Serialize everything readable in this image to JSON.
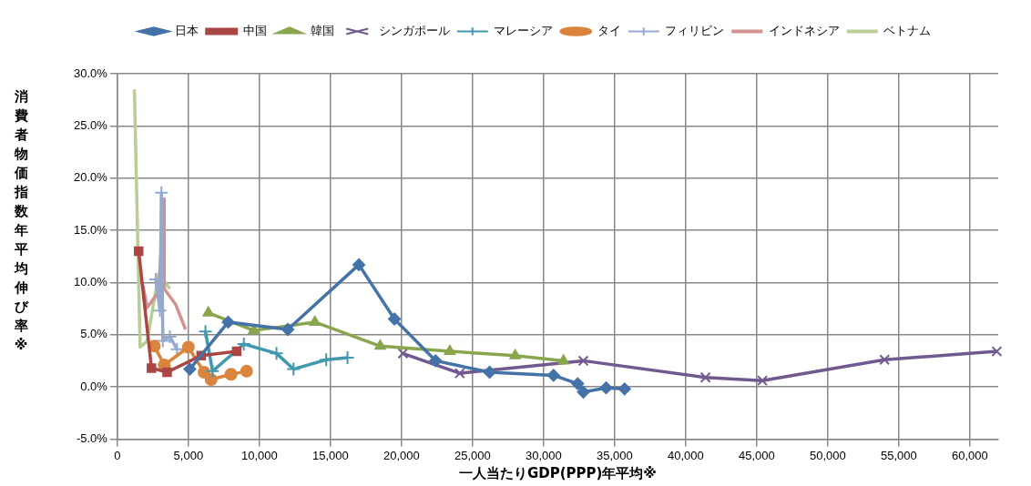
{
  "chart_data": {
    "type": "line",
    "xlabel": "一人当たりGDP(PPP)年平均※",
    "ylabel": "消費者物価指数年平均伸び率※",
    "xlim": [
      0,
      62000
    ],
    "xticks": [
      0,
      {
        "value": 5000,
        "label": "5,000"
      },
      {
        "value": 10000,
        "label": "10,000"
      },
      {
        "value": 15000,
        "label": "15,000"
      },
      {
        "value": 20000,
        "label": "20,000"
      },
      {
        "value": 25000,
        "label": "25,000"
      },
      {
        "value": 30000,
        "label": "30,000"
      },
      {
        "value": 35000,
        "label": "35,000"
      },
      {
        "value": 40000,
        "label": "40,000"
      },
      {
        "value": 45000,
        "label": "45,000"
      },
      {
        "value": 50000,
        "label": "50,000"
      },
      {
        "value": 55000,
        "label": "55,000"
      },
      {
        "value": 60000,
        "label": "60,000"
      }
    ],
    "ylim": [
      -5,
      30
    ],
    "yticks": [
      {
        "value": -5,
        "label": "-5.0%"
      },
      {
        "value": 0,
        "label": "0.0%"
      },
      {
        "value": 5,
        "label": "5.0%"
      },
      {
        "value": 10,
        "label": "10.0%"
      },
      {
        "value": 15,
        "label": "15.0%"
      },
      {
        "value": 20,
        "label": "20.0%"
      },
      {
        "value": 25,
        "label": "25.0%"
      },
      {
        "value": 30,
        "label": "30.0%"
      }
    ],
    "grid": true,
    "legend": "top",
    "series": [
      {
        "name": "日本",
        "color": "#4572a7",
        "marker": "diamond",
        "x": [
          5100,
          7800,
          12000,
          17000,
          19500,
          22400,
          26200,
          30700,
          32400,
          32800,
          34400,
          35700
        ],
        "values": [
          1.7,
          6.2,
          5.5,
          11.7,
          6.5,
          2.5,
          1.4,
          1.1,
          0.3,
          -0.5,
          -0.1,
          -0.2
        ]
      },
      {
        "name": "中国",
        "color": "#aa4643",
        "marker": "square",
        "x": [
          1500,
          2400,
          3500,
          5900,
          8400
        ],
        "values": [
          13.0,
          1.8,
          1.4,
          3.0,
          3.4
        ]
      },
      {
        "name": "韓国",
        "color": "#89a54e",
        "marker": "triangle",
        "x": [
          6400,
          9600,
          13900,
          18500,
          23400,
          28000,
          31400
        ],
        "values": [
          7.1,
          5.4,
          6.2,
          3.9,
          3.4,
          3.0,
          2.5
        ]
      },
      {
        "name": "シンガポール",
        "color": "#71588f",
        "marker": "x",
        "x": [
          20100,
          24100,
          32800,
          41400,
          45400,
          54000,
          61900
        ],
        "values": [
          3.2,
          1.3,
          2.5,
          0.9,
          0.6,
          2.6,
          3.4
        ]
      },
      {
        "name": "マレーシア",
        "color": "#4198af",
        "marker": "cross",
        "x": [
          6200,
          6700,
          8900,
          11200,
          12400,
          14700,
          16200
        ],
        "values": [
          5.3,
          1.5,
          4.1,
          3.2,
          1.7,
          2.6,
          2.8
        ]
      },
      {
        "name": "タイ",
        "color": "#db843d",
        "marker": "circle",
        "x": [
          2600,
          3300,
          5000,
          6100,
          6600,
          8000,
          9100
        ],
        "values": [
          3.9,
          2.1,
          3.8,
          1.4,
          0.7,
          1.2,
          1.5
        ]
      },
      {
        "name": "フィリピン",
        "color": "#93a9cf",
        "marker": "cross",
        "x": [
          2700,
          3000,
          3100,
          3200,
          3700,
          4200
        ],
        "values": [
          10.3,
          7.3,
          18.6,
          4.4,
          4.8,
          3.6
        ]
      },
      {
        "name": "インドネシア",
        "color": "#d19392",
        "marker": "none",
        "x": [
          1800,
          2100,
          2900,
          3300,
          3300,
          4100,
          4800
        ],
        "values": [
          9.7,
          7.6,
          9.1,
          18.0,
          9.4,
          7.9,
          5.5
        ]
      },
      {
        "name": "ベトナム",
        "color": "#b9cd96",
        "marker": "none",
        "x": [
          1200,
          1600,
          2100,
          2900,
          3700
        ],
        "values": [
          28.5,
          3.8,
          4.4,
          10.8,
          9.4
        ]
      }
    ]
  }
}
